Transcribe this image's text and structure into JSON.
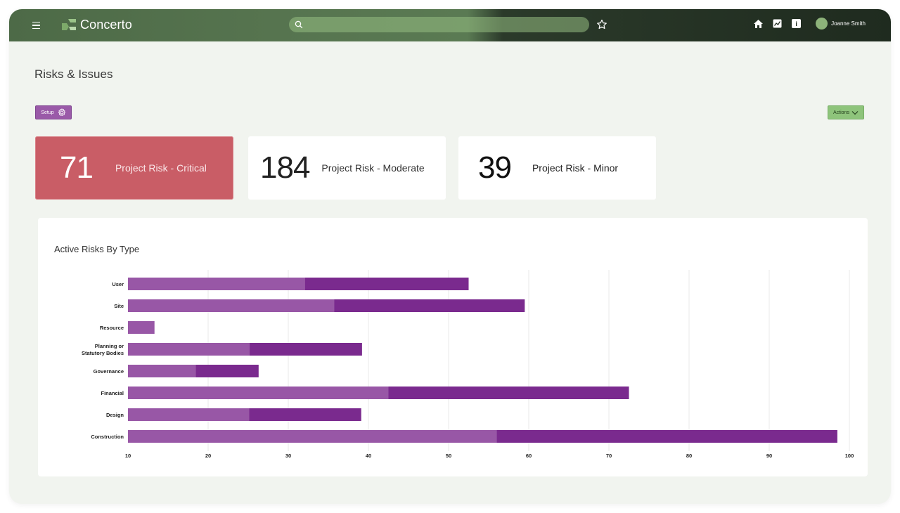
{
  "app": {
    "name": "Concerto",
    "search_placeholder": "",
    "user_name": "Joanne Smith"
  },
  "page": {
    "title": "Risks & Issues",
    "setup_label": "Setup",
    "actions_label": "Actions"
  },
  "cards": [
    {
      "value": "71",
      "label": "Project Risk - Critical"
    },
    {
      "value": "184",
      "label": "Project Risk - Moderate"
    },
    {
      "value": "39",
      "label": "Project Risk - Minor"
    }
  ],
  "colors": {
    "topbar": "#4d6a47",
    "critical": "#c95d66",
    "bar_light": "#9a5aa8",
    "bar_dark": "#7a2a8e",
    "setup": "#9a5aa8",
    "actions": "#8ec47b"
  },
  "icons": {
    "menu": "menu-icon",
    "logo": "concerto-logo-icon",
    "search": "search-icon",
    "favorite": "star-icon",
    "home": "home-icon",
    "analytics": "chart-icon",
    "info": "info-icon",
    "settings": "gear-icon",
    "dropdown": "chevron-down-icon"
  },
  "chart_data": {
    "type": "bar",
    "orientation": "horizontal",
    "title": "Active Risks By Type",
    "categories": [
      "User",
      "Site",
      "Resource",
      "Planning or Statutory Bodies",
      "Governance",
      "Financial",
      "Design",
      "Construction"
    ],
    "category_lines": [
      [
        "User"
      ],
      [
        "Site"
      ],
      [
        "Resource"
      ],
      [
        "Planning or",
        "Statutory Bodies"
      ],
      [
        "Governance"
      ],
      [
        "Financial"
      ],
      [
        "Design"
      ],
      [
        "Construction"
      ]
    ],
    "values": [
      52.5,
      59.5,
      13.3,
      39.2,
      26.3,
      72.5,
      39.1,
      98.5
    ],
    "xlim": [
      10,
      100
    ],
    "xticks": [
      "10",
      "20",
      "30",
      "40",
      "50",
      "60",
      "70",
      "80",
      "90",
      "100"
    ],
    "grid": true,
    "xlabel": "",
    "ylabel": ""
  }
}
